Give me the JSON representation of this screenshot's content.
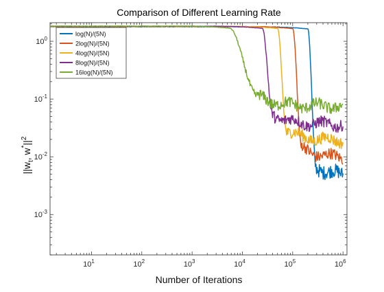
{
  "chart_data": {
    "type": "line",
    "title": "Comparison of Different Learning Rate",
    "xlabel": "Number of Iterations",
    "ylabel": {
      "main": "||w",
      "sub": "t",
      "mid": ", w",
      "sup1": "*",
      "end": "||",
      "sup2": "2"
    },
    "x_scale": "log",
    "y_scale": "log",
    "xlim": [
      1.5,
      1200000
    ],
    "ylim": [
      0.0002,
      2.1
    ],
    "x_ticks": [
      {
        "value": 10,
        "base": "10",
        "exp": "1"
      },
      {
        "value": 100,
        "base": "10",
        "exp": "2"
      },
      {
        "value": 1000,
        "base": "10",
        "exp": "3"
      },
      {
        "value": 10000,
        "base": "10",
        "exp": "4"
      },
      {
        "value": 100000,
        "base": "10",
        "exp": "5"
      },
      {
        "value": 1000000,
        "base": "10",
        "exp": "6"
      }
    ],
    "y_ticks": [
      {
        "value": 0.001,
        "base": "10",
        "exp": "-3"
      },
      {
        "value": 0.01,
        "base": "10",
        "exp": "-2"
      },
      {
        "value": 0.1,
        "base": "10",
        "exp": "-1"
      },
      {
        "value": 1,
        "base": "10",
        "exp": "0"
      }
    ],
    "grid": false,
    "legend_position": "top-left",
    "series": [
      {
        "name": "log(N)/(5N)",
        "color": "#0072BD",
        "start": 1.78,
        "drop_start": 200000,
        "drop_end": 290000,
        "final": 0.0045,
        "noise": 0.12,
        "x_end": 1000000
      },
      {
        "name": "2log(N)/(5N)",
        "color": "#D95319",
        "start": 1.8,
        "drop_start": 100000,
        "drop_end": 150000,
        "final": 0.0095,
        "noise": 0.1,
        "x_end": 1000000
      },
      {
        "name": "4log(N)/(5N)",
        "color": "#EDB120",
        "start": 1.81,
        "drop_start": 50000,
        "drop_end": 75000,
        "final": 0.019,
        "noise": 0.1,
        "x_end": 1000000
      },
      {
        "name": "8log(N)/(5N)",
        "color": "#7E2F8E",
        "start": 1.82,
        "drop_start": 25000,
        "drop_end": 40000,
        "final": 0.036,
        "noise": 0.1,
        "x_end": 1000000
      },
      {
        "name": "16log(N)/(5N)",
        "color": "#77AC30",
        "start": 1.83,
        "drop_start": 5500,
        "drop_end": 20000,
        "final": 0.075,
        "noise": 0.1,
        "x_end": 1000000
      }
    ]
  }
}
